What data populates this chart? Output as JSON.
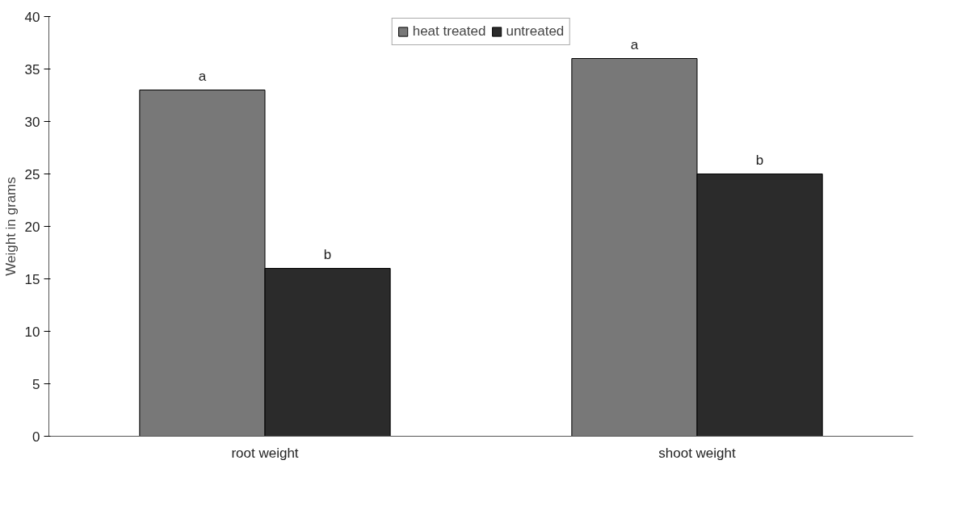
{
  "chart_data": {
    "type": "bar",
    "ylabel": "Weight in grams",
    "categories": [
      "root weight",
      "shoot weight"
    ],
    "series": [
      {
        "name": "heat treated",
        "color": "#787878",
        "values": [
          33,
          36
        ]
      },
      {
        "name": "untreated",
        "color": "#2b2b2b",
        "values": [
          16,
          25
        ]
      }
    ],
    "ylim": [
      0,
      40
    ],
    "yticks": [
      0,
      5,
      10,
      15,
      20,
      25,
      30,
      35,
      40
    ],
    "grid": false,
    "legend": "top",
    "annotations": [
      "a",
      "b",
      "a",
      "b"
    ]
  }
}
